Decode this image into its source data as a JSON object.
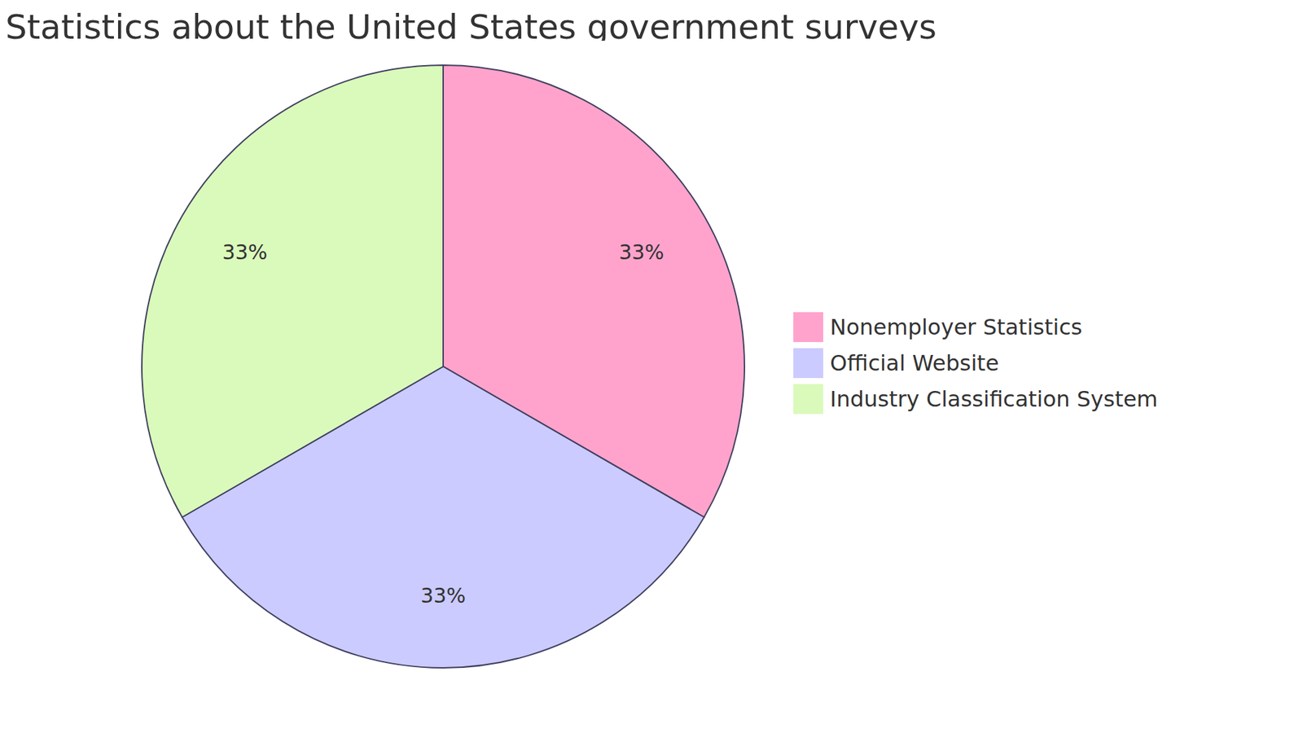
{
  "chart_data": {
    "type": "pie",
    "title": "Statistics about the United States government surveys",
    "categories": [
      "Nonemployer Statistics",
      "Official Website",
      "Industry Classification System"
    ],
    "values": [
      33,
      33,
      33
    ],
    "value_labels": [
      "33%",
      "33%",
      "33%"
    ],
    "colors": [
      "#ffa3cc",
      "#cbcbff",
      "#dafabb"
    ],
    "data_labels": true,
    "legend": "right"
  }
}
